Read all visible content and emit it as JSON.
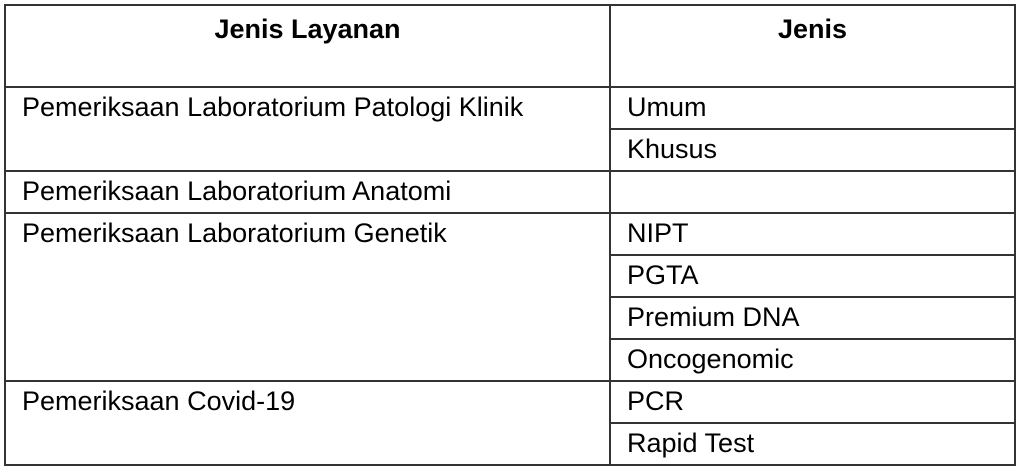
{
  "table": {
    "headers": [
      "Jenis Layanan",
      "Jenis"
    ],
    "groups": [
      {
        "service": "Pemeriksaan Laboratorium Patologi Klinik",
        "types": [
          "Umum",
          "Khusus"
        ]
      },
      {
        "service": "Pemeriksaan Laboratorium Anatomi",
        "types": [
          ""
        ]
      },
      {
        "service": "Pemeriksaan Laboratorium Genetik",
        "types": [
          "NIPT",
          "PGTA",
          "Premium DNA",
          "Oncogenomic"
        ]
      },
      {
        "service": "Pemeriksaan Covid-19",
        "types": [
          "PCR",
          "Rapid Test"
        ]
      }
    ]
  }
}
